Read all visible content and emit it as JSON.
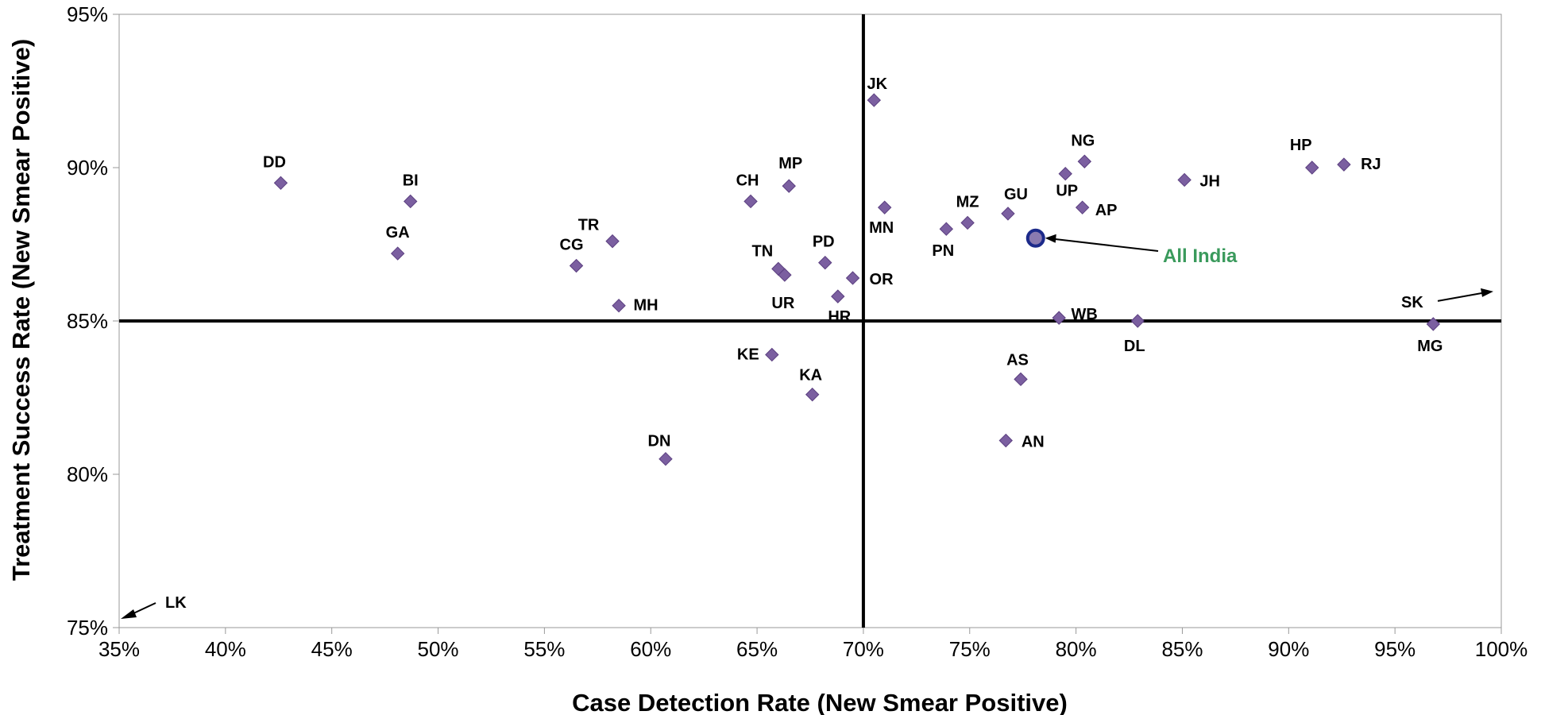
{
  "chart_data": {
    "type": "scatter",
    "xlabel": "Case Detection Rate (New Smear Positive)",
    "ylabel": "Treatment Success Rate (New Smear Positive)",
    "xlim": [
      0.35,
      1.0
    ],
    "ylim": [
      0.75,
      0.95
    ],
    "x_ticks": [
      0.35,
      0.4,
      0.45,
      0.5,
      0.55,
      0.6,
      0.65,
      0.7,
      0.75,
      0.8,
      0.85,
      0.9,
      0.95,
      1.0
    ],
    "x_tick_labels": [
      "35%",
      "40%",
      "45%",
      "50%",
      "55%",
      "60%",
      "65%",
      "70%",
      "75%",
      "80%",
      "85%",
      "90%",
      "95%",
      "100%"
    ],
    "y_ticks": [
      0.75,
      0.8,
      0.85,
      0.9,
      0.95
    ],
    "y_tick_labels": [
      "75%",
      "80%",
      "85%",
      "90%",
      "95%"
    ],
    "grid": false,
    "reference_lines": {
      "x": 0.7,
      "y": 0.85
    },
    "colors": {
      "marker": "#7b5fa0",
      "marker_edge": "#5b3f80",
      "highlight_fill": "#8a7ab0",
      "highlight_ring": "#1c2a8a",
      "highlight_text": "#3a9a5c",
      "axis": "#999999",
      "reference": "#000000"
    },
    "points": [
      {
        "label": "DD",
        "x": 0.426,
        "y": 0.895
      },
      {
        "label": "BI",
        "x": 0.487,
        "y": 0.889
      },
      {
        "label": "GA",
        "x": 0.481,
        "y": 0.872
      },
      {
        "label": "CG",
        "x": 0.565,
        "y": 0.868
      },
      {
        "label": "TR",
        "x": 0.582,
        "y": 0.876
      },
      {
        "label": "MH",
        "x": 0.585,
        "y": 0.855
      },
      {
        "label": "DN",
        "x": 0.607,
        "y": 0.805
      },
      {
        "label": "CH",
        "x": 0.647,
        "y": 0.889
      },
      {
        "label": "MP",
        "x": 0.665,
        "y": 0.894
      },
      {
        "label": "TN",
        "x": 0.66,
        "y": 0.867
      },
      {
        "label": "UR",
        "x": 0.663,
        "y": 0.865
      },
      {
        "label": "KE",
        "x": 0.657,
        "y": 0.839
      },
      {
        "label": "KA",
        "x": 0.676,
        "y": 0.826
      },
      {
        "label": "PD",
        "x": 0.682,
        "y": 0.869
      },
      {
        "label": "HR",
        "x": 0.688,
        "y": 0.858
      },
      {
        "label": "OR",
        "x": 0.695,
        "y": 0.864
      },
      {
        "label": "JK",
        "x": 0.705,
        "y": 0.922
      },
      {
        "label": "MN",
        "x": 0.71,
        "y": 0.887
      },
      {
        "label": "PN",
        "x": 0.739,
        "y": 0.88
      },
      {
        "label": "MZ",
        "x": 0.749,
        "y": 0.882
      },
      {
        "label": "GU",
        "x": 0.768,
        "y": 0.885
      },
      {
        "label": "AS",
        "x": 0.774,
        "y": 0.831
      },
      {
        "label": "AN",
        "x": 0.767,
        "y": 0.811
      },
      {
        "label": "UP",
        "x": 0.795,
        "y": 0.898
      },
      {
        "label": "NG",
        "x": 0.804,
        "y": 0.902
      },
      {
        "label": "AP",
        "x": 0.803,
        "y": 0.887
      },
      {
        "label": "WB",
        "x": 0.792,
        "y": 0.851
      },
      {
        "label": "DL",
        "x": 0.829,
        "y": 0.85
      },
      {
        "label": "JH",
        "x": 0.851,
        "y": 0.896
      },
      {
        "label": "HP",
        "x": 0.911,
        "y": 0.9
      },
      {
        "label": "RJ",
        "x": 0.926,
        "y": 0.901
      },
      {
        "label": "MG",
        "x": 0.968,
        "y": 0.849
      }
    ],
    "highlight": {
      "label": "All India",
      "x": 0.781,
      "y": 0.877
    },
    "offscale": [
      {
        "label": "SK",
        "direction": "right"
      },
      {
        "label": "LK",
        "direction": "lower-left"
      }
    ]
  }
}
